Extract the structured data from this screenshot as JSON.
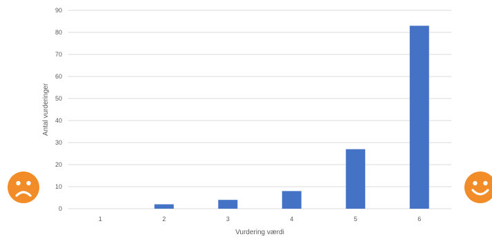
{
  "chart_data": {
    "type": "bar",
    "categories": [
      "1",
      "2",
      "3",
      "4",
      "5",
      "6"
    ],
    "values": [
      0,
      2,
      4,
      8,
      27,
      83
    ],
    "title": "",
    "xlabel": "Vurdering værdi",
    "ylabel": "Antal vurderinger",
    "ylim": [
      0,
      90
    ],
    "yticks": [
      0,
      10,
      20,
      30,
      40,
      50,
      60,
      70,
      80,
      90
    ],
    "grid": true,
    "legend": "none",
    "bar_color": "#4472c4"
  },
  "decorations": {
    "left_icon": "sad-face-icon",
    "right_icon": "happy-face-icon",
    "icon_color": "#f28c28"
  }
}
